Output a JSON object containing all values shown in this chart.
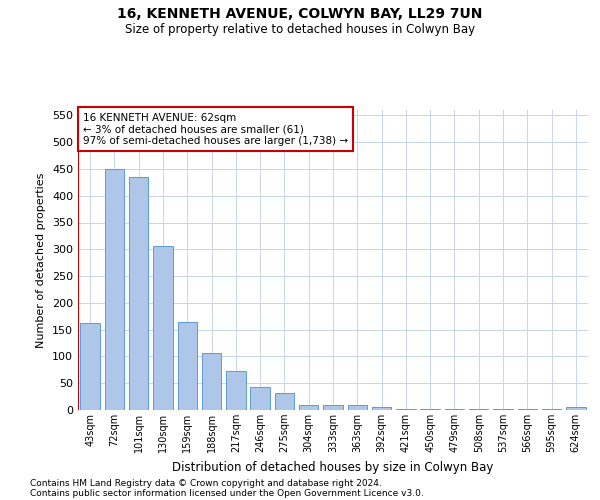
{
  "title1": "16, KENNETH AVENUE, COLWYN BAY, LL29 7UN",
  "title2": "Size of property relative to detached houses in Colwyn Bay",
  "xlabel": "Distribution of detached houses by size in Colwyn Bay",
  "ylabel": "Number of detached properties",
  "categories": [
    "43sqm",
    "72sqm",
    "101sqm",
    "130sqm",
    "159sqm",
    "188sqm",
    "217sqm",
    "246sqm",
    "275sqm",
    "304sqm",
    "333sqm",
    "363sqm",
    "392sqm",
    "421sqm",
    "450sqm",
    "479sqm",
    "508sqm",
    "537sqm",
    "566sqm",
    "595sqm",
    "624sqm"
  ],
  "values": [
    163,
    450,
    435,
    307,
    165,
    106,
    73,
    43,
    32,
    10,
    9,
    9,
    5,
    2,
    2,
    1,
    1,
    1,
    1,
    1,
    5
  ],
  "bar_color": "#aec6e8",
  "bar_edge_color": "#5b9bd5",
  "annotation_box_color": "#ffffff",
  "annotation_border_color": "#cc0000",
  "vline_color": "#cc0000",
  "annotation_text_line1": "16 KENNETH AVENUE: 62sqm",
  "annotation_text_line2": "← 3% of detached houses are smaller (61)",
  "annotation_text_line3": "97% of semi-detached houses are larger (1,738) →",
  "ylim": [
    0,
    560
  ],
  "yticks": [
    0,
    50,
    100,
    150,
    200,
    250,
    300,
    350,
    400,
    450,
    500,
    550
  ],
  "footer1": "Contains HM Land Registry data © Crown copyright and database right 2024.",
  "footer2": "Contains public sector information licensed under the Open Government Licence v3.0.",
  "bg_color": "#ffffff",
  "grid_color": "#c8d4e8"
}
